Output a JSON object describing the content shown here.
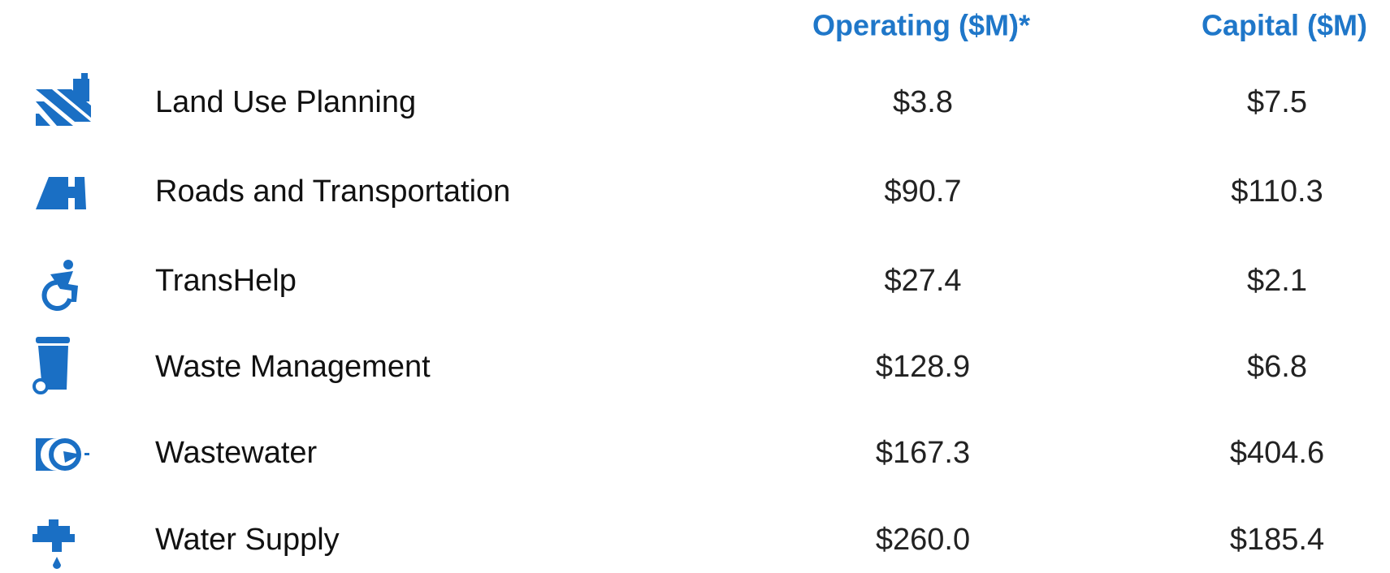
{
  "table": {
    "columns": [
      "Operating ($M)*",
      "Capital ($M)"
    ],
    "rows": [
      [
        "Land Use Planning",
        "$3.8",
        "$7.5"
      ],
      [
        "Roads and Transportation",
        "$90.7",
        "$110.3"
      ],
      [
        "TransHelp",
        "$27.4",
        "$2.1"
      ],
      [
        "Waste Management",
        "$128.9",
        "$6.8"
      ],
      [
        "Wastewater",
        "$167.3",
        "$404.6"
      ],
      [
        "Water Supply",
        "$260.0",
        "$185.4"
      ]
    ]
  }
}
